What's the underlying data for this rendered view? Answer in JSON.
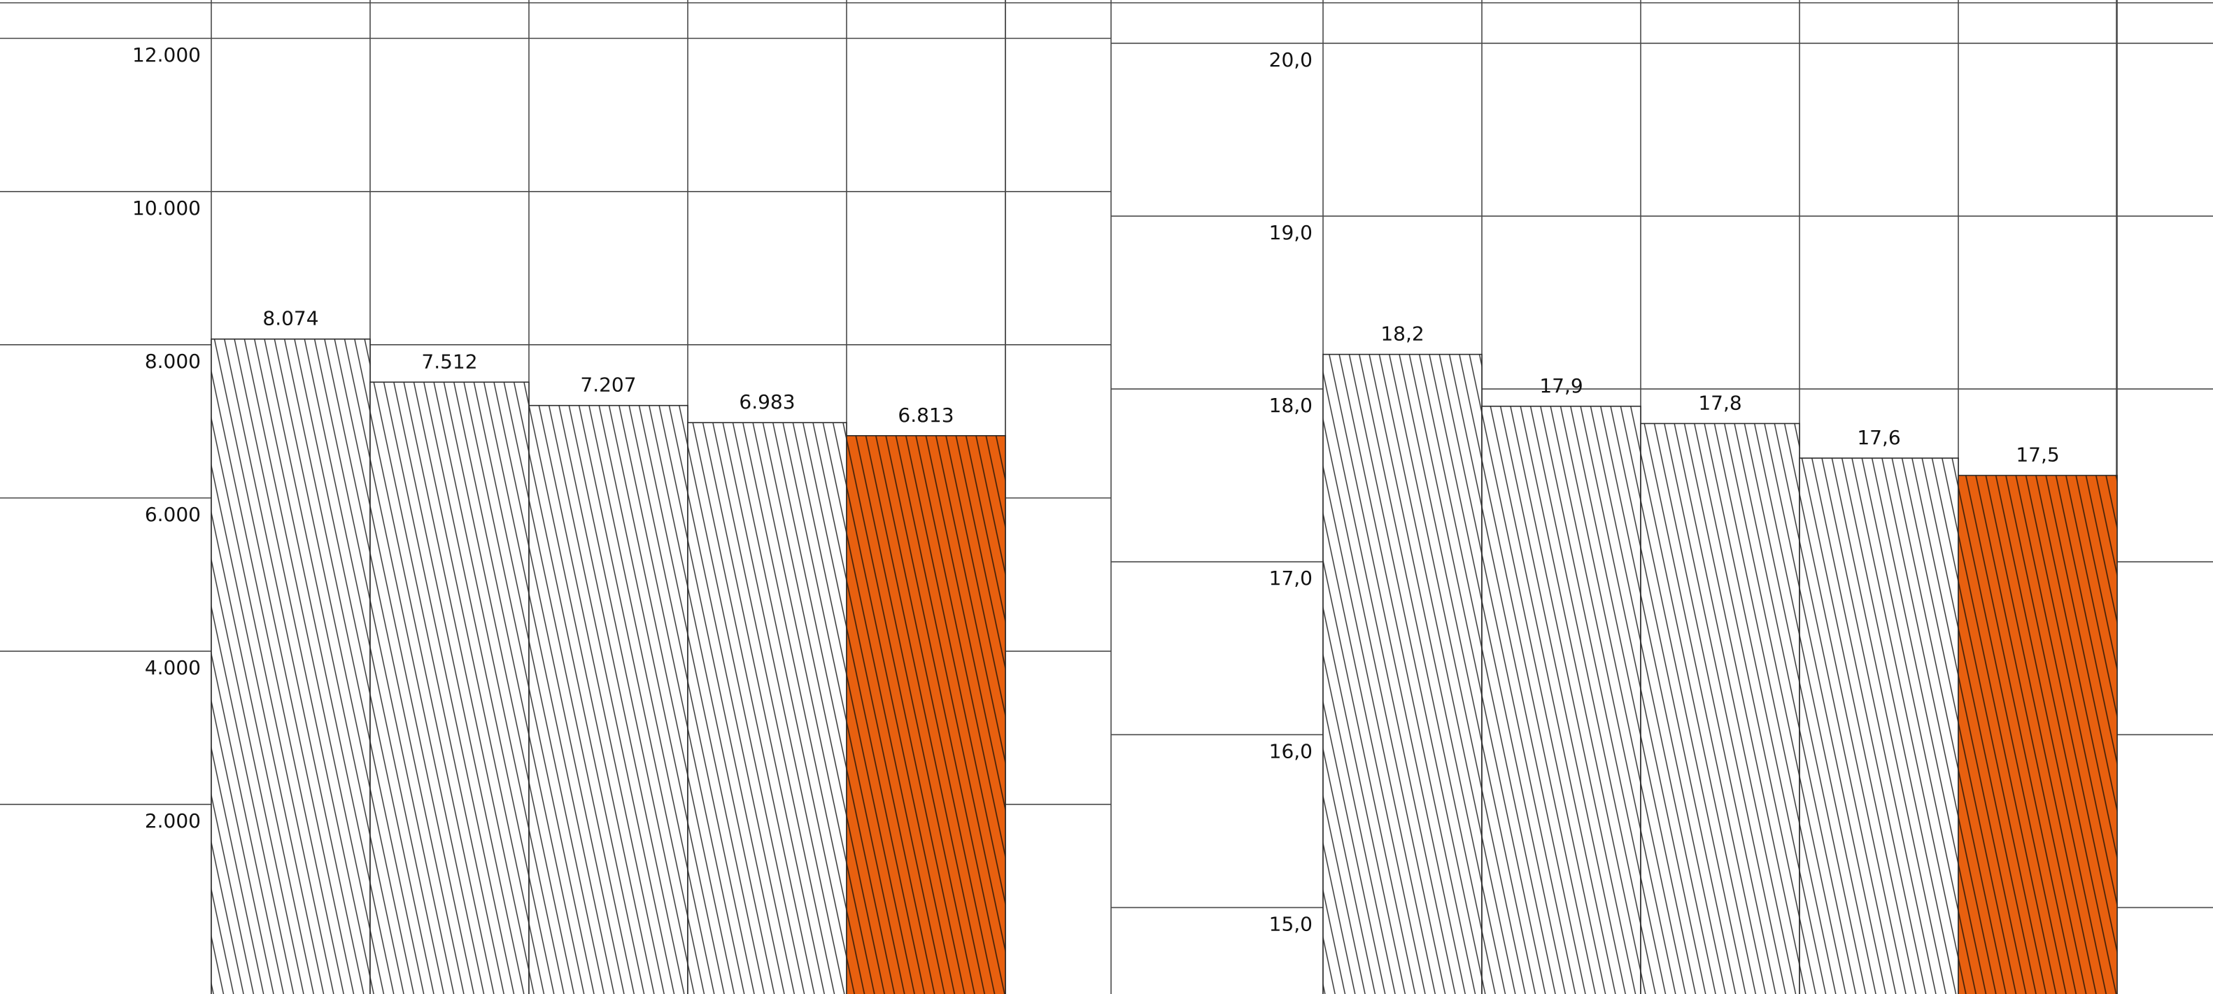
{
  "colors": {
    "grid": "#4a4a4a",
    "hatch": "#2b2b2b",
    "highlight": "#e8600f",
    "highlight_hatch": "#3a1e0a"
  },
  "chart_data": [
    {
      "type": "bar",
      "title": "",
      "xlabel": "",
      "ylabel": "",
      "grid": true,
      "legend": "none",
      "ylim": [
        0,
        12000
      ],
      "yticks": [
        "2.000",
        "4.000",
        "6.000",
        "8.000",
        "10.000",
        "12.000"
      ],
      "ytick_values": [
        2000,
        4000,
        6000,
        8000,
        10000,
        12000
      ],
      "values": [
        8074,
        7512,
        7207,
        6983,
        6813
      ],
      "value_labels": [
        "8.074",
        "7.512",
        "7.207",
        "6.983",
        "6.813"
      ],
      "highlight_index": 4,
      "y_visible_min": -475,
      "y_visible_max": 12500
    },
    {
      "type": "bar",
      "title": "",
      "xlabel": "",
      "ylabel": "",
      "grid": true,
      "legend": "none",
      "ylim": [
        14.5,
        20.0
      ],
      "yticks": [
        "15,0",
        "16,0",
        "17,0",
        "18,0",
        "19,0",
        "20,0"
      ],
      "ytick_values": [
        15,
        16,
        17,
        18,
        19,
        20
      ],
      "values": [
        18.2,
        17.9,
        17.8,
        17.6,
        17.5
      ],
      "value_labels": [
        "18,2",
        "17,9",
        "17,8",
        "17,6",
        "17,5"
      ],
      "highlight_index": 4,
      "y_visible_min": 14.5,
      "y_visible_max": 20.25
    }
  ]
}
